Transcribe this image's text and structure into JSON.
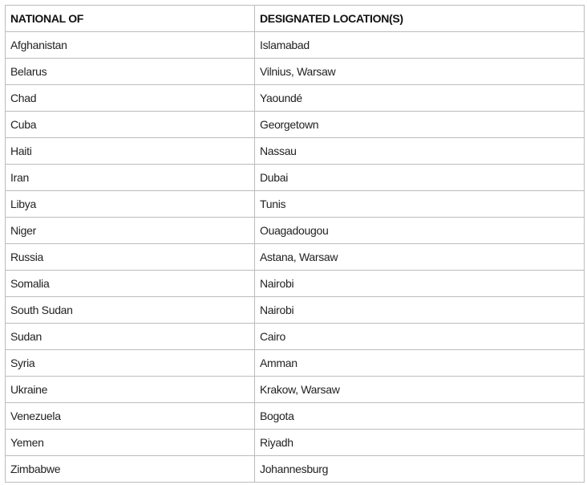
{
  "table": {
    "headers": [
      "NATIONAL OF",
      "DESIGNATED LOCATION(S)"
    ],
    "rows": [
      [
        "Afghanistan",
        "Islamabad"
      ],
      [
        "Belarus",
        "Vilnius, Warsaw"
      ],
      [
        "Chad",
        "Yaoundé"
      ],
      [
        "Cuba",
        "Georgetown"
      ],
      [
        "Haiti",
        "Nassau"
      ],
      [
        "Iran",
        "Dubai"
      ],
      [
        "Libya",
        "Tunis"
      ],
      [
        "Niger",
        "Ouagadougou"
      ],
      [
        "Russia",
        "Astana, Warsaw"
      ],
      [
        "Somalia",
        "Nairobi"
      ],
      [
        "South Sudan",
        "Nairobi"
      ],
      [
        "Sudan",
        "Cairo"
      ],
      [
        "Syria",
        "Amman"
      ],
      [
        "Ukraine",
        "Krakow, Warsaw"
      ],
      [
        "Venezuela",
        "Bogota"
      ],
      [
        "Yemen",
        "Riyadh"
      ],
      [
        "Zimbabwe",
        "Johannesburg"
      ]
    ]
  }
}
